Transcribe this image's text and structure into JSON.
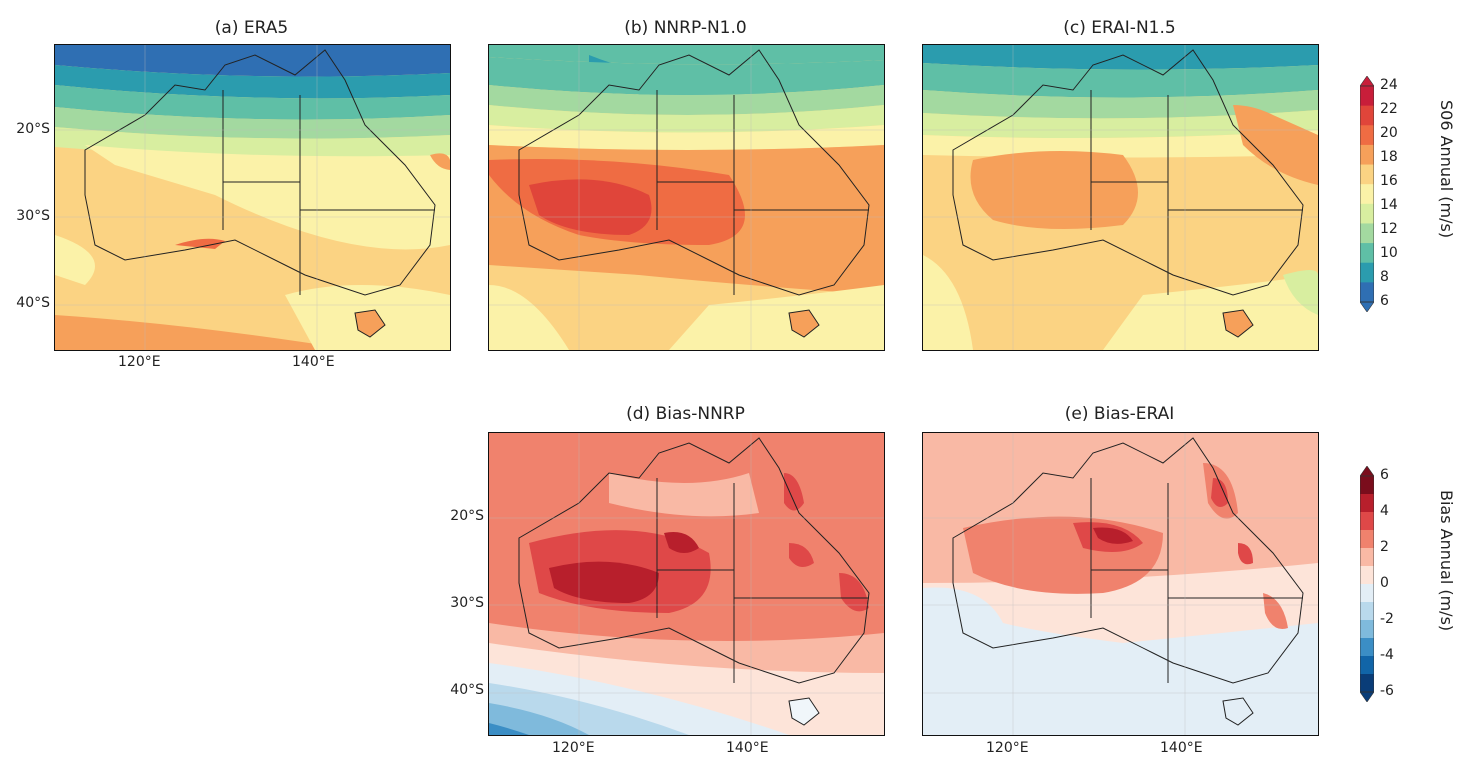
{
  "panels": {
    "a": {
      "title": "(a) ERA5"
    },
    "b": {
      "title": "(b) NNRP-N1.0"
    },
    "c": {
      "title": "(c) ERAI-N1.5"
    },
    "d": {
      "title": "(d) Bias-NNRP"
    },
    "e": {
      "title": "(e) Bias-ERAI"
    }
  },
  "axes": {
    "lat_labels": [
      "20°S",
      "30°S",
      "40°S"
    ],
    "lon_labels": [
      "120°E",
      "140°E"
    ]
  },
  "colorbar_s06": {
    "title": "S06 Annual (m/s)",
    "ticks": [
      "24",
      "22",
      "20",
      "18",
      "16",
      "14",
      "12",
      "10",
      "8",
      "6"
    ],
    "colors": [
      "#c81e3a",
      "#e0453a",
      "#ef6c43",
      "#f6a05a",
      "#fbd383",
      "#fbf2a8",
      "#d8eea0",
      "#a3d9a0",
      "#5fbfa6",
      "#2b9cae",
      "#2f6fb3"
    ]
  },
  "colorbar_bias": {
    "title": "Bias Annual (m/s)",
    "ticks": [
      "6",
      "4",
      "2",
      "0",
      "-2",
      "-4",
      "-6"
    ],
    "colors": [
      "#7a0d1c",
      "#b81f2c",
      "#df4848",
      "#f0826d",
      "#f9b9a5",
      "#fde4d9",
      "#e3eef6",
      "#b9d9ec",
      "#7fbadc",
      "#3b8ec5",
      "#1165a8",
      "#0a3d78"
    ]
  }
}
